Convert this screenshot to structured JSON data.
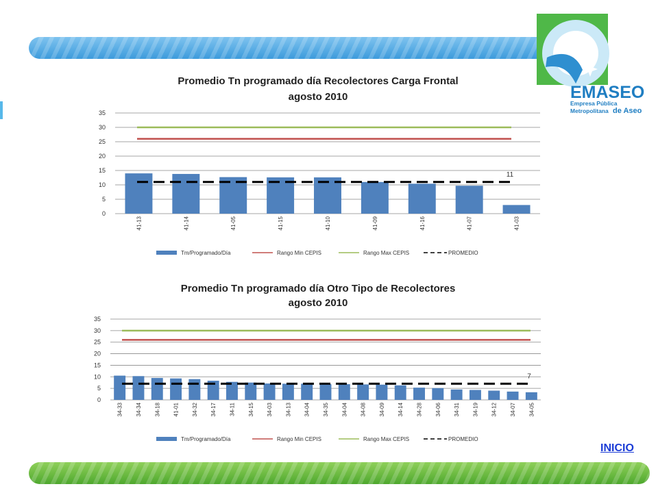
{
  "logo": {
    "name": "EMASEO",
    "tagline_1": "Empresa Pública",
    "tagline_2": "Metropolitana",
    "tagline_3": "de Aseo"
  },
  "nav": {
    "inicio_label": "INICIO"
  },
  "colors": {
    "bar": "#4f81bd",
    "rango_min": "#c0504d",
    "rango_max": "#9bbb59",
    "promedio": "#000000"
  },
  "chart_data": [
    {
      "type": "bar",
      "title_line1": "Promedio Tn programado día Recolectores Carga Frontal",
      "title_line2": "agosto  2010",
      "categories": [
        "41-13",
        "41-14",
        "41-05",
        "41-15",
        "41-10",
        "41-09",
        "41-16",
        "41-07",
        "41-03"
      ],
      "series": [
        {
          "name": "Tm/Programado/Día",
          "kind": "bar",
          "values": [
            14,
            13.8,
            12.7,
            12.6,
            12.6,
            11,
            10.4,
            9.7,
            3
          ]
        },
        {
          "name": "Rango Min CEPIS",
          "kind": "line",
          "value": 26
        },
        {
          "name": "Rango Max CEPIS",
          "kind": "line",
          "value": 30
        },
        {
          "name": "PROMEDIO",
          "kind": "dashed",
          "value": 11
        }
      ],
      "promedio_label": "11",
      "ylim": [
        0,
        35
      ],
      "yticks": [
        0,
        5,
        10,
        15,
        20,
        25,
        30,
        35
      ],
      "grid": true,
      "legend": "bottom"
    },
    {
      "type": "bar",
      "title_line1": "Promedio Tn programado día Otro Tipo de Recolectores",
      "title_line2": "agosto 2010",
      "categories": [
        "34-33",
        "34-34",
        "34-18",
        "41-01",
        "34-32",
        "34-17",
        "34-11",
        "34-15",
        "34-03",
        "34-13",
        "34-04",
        "34-35",
        "34-04",
        "34-08",
        "34-09",
        "34-14",
        "34-28",
        "34-06",
        "34-31",
        "34-19",
        "34-12",
        "34-07",
        "34-05"
      ],
      "series": [
        {
          "name": "Tm/Programado/Día",
          "kind": "bar",
          "values": [
            10.5,
            10.3,
            9.5,
            9.3,
            9,
            8.3,
            7.8,
            7.5,
            7.1,
            7,
            7,
            6.8,
            6.8,
            6.7,
            6.6,
            6.3,
            5.3,
            5.1,
            4.5,
            4.3,
            4,
            3.6,
            3.3
          ]
        },
        {
          "name": "Rango Min CEPIS",
          "kind": "line",
          "value": 26
        },
        {
          "name": "Rango Max CEPIS",
          "kind": "line",
          "value": 30
        },
        {
          "name": "PROMEDIO",
          "kind": "dashed",
          "value": 7
        }
      ],
      "promedio_label": "7",
      "ylim": [
        0,
        35
      ],
      "yticks": [
        0,
        5,
        10,
        15,
        20,
        25,
        30,
        35
      ],
      "grid": true,
      "legend": "bottom"
    }
  ]
}
